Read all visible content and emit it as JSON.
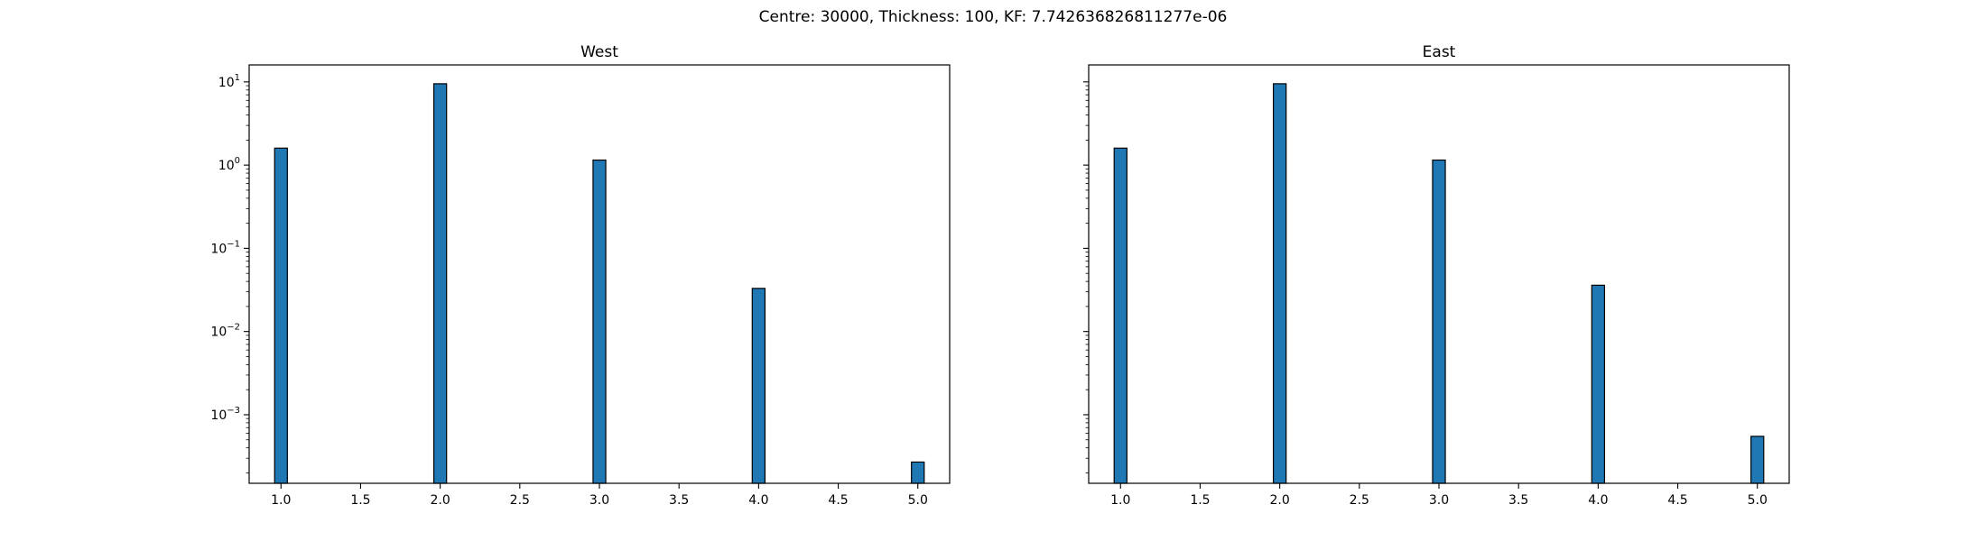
{
  "figure": {
    "title": "Centre: 30000, Thickness: 100, KF: 7.742636826811277e-06"
  },
  "colors": {
    "bar_fill": "#1f77b4",
    "bar_edge": "#000000"
  },
  "chart_data": [
    {
      "type": "bar",
      "title": "West",
      "xlabel": "",
      "ylabel": "",
      "x": [
        1,
        2,
        3,
        4,
        5
      ],
      "values": [
        1.6,
        9.5,
        1.15,
        0.033,
        0.00027
      ],
      "bar_width": 0.08,
      "xlim": [
        0.8,
        5.2
      ],
      "ylim": [
        0.00015,
        16
      ],
      "yscale": "log",
      "x_ticks": [
        1.0,
        1.5,
        2.0,
        2.5,
        3.0,
        3.5,
        4.0,
        4.5,
        5.0
      ],
      "x_tick_labels": [
        "1.0",
        "1.5",
        "2.0",
        "2.5",
        "3.0",
        "3.5",
        "4.0",
        "4.5",
        "5.0"
      ],
      "y_ticks": [
        0.001,
        0.01,
        0.1,
        1,
        10
      ],
      "y_tick_labels": [
        {
          "base": "10",
          "exp": "−3"
        },
        {
          "base": "10",
          "exp": "−2"
        },
        {
          "base": "10",
          "exp": "−1"
        },
        {
          "base": "10",
          "exp": "0"
        },
        {
          "base": "10",
          "exp": "1"
        }
      ],
      "show_y_tick_labels": true,
      "grid": false
    },
    {
      "type": "bar",
      "title": "East",
      "xlabel": "",
      "ylabel": "",
      "x": [
        1,
        2,
        3,
        4,
        5
      ],
      "values": [
        1.6,
        9.5,
        1.15,
        0.036,
        0.00055
      ],
      "bar_width": 0.08,
      "xlim": [
        0.8,
        5.2
      ],
      "ylim": [
        0.00015,
        16
      ],
      "yscale": "log",
      "x_ticks": [
        1.0,
        1.5,
        2.0,
        2.5,
        3.0,
        3.5,
        4.0,
        4.5,
        5.0
      ],
      "x_tick_labels": [
        "1.0",
        "1.5",
        "2.0",
        "2.5",
        "3.0",
        "3.5",
        "4.0",
        "4.5",
        "5.0"
      ],
      "y_ticks": [
        0.001,
        0.01,
        0.1,
        1,
        10
      ],
      "y_tick_labels": [],
      "show_y_tick_labels": false,
      "grid": false
    }
  ]
}
